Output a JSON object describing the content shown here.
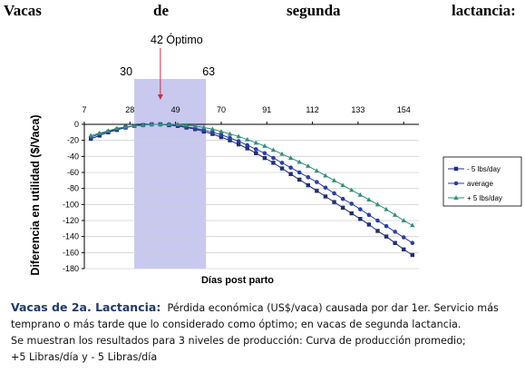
{
  "title_words": [
    "Vacas",
    "de",
    "segunda",
    "lactancia:"
  ],
  "chart_data": {
    "type": "line",
    "ylabel": "Diferencia en utilidad ($/Vaca)",
    "xlabel": "Días post parto",
    "x_ticks": [
      7,
      28,
      49,
      70,
      91,
      112,
      133,
      154
    ],
    "y_ticks": [
      0,
      -20,
      -40,
      -60,
      -80,
      -100,
      -120,
      -140,
      -160,
      -180
    ],
    "ylim": [
      -180,
      0
    ],
    "xlim": [
      7,
      161
    ],
    "optimal_window": {
      "start": 30,
      "end": 63,
      "start_label": "30",
      "end_label": "63"
    },
    "optimum": {
      "x": 42,
      "label": "42 Óptimo"
    },
    "x": [
      10,
      14,
      18,
      22,
      26,
      30,
      34,
      38,
      42,
      46,
      50,
      54,
      58,
      62,
      66,
      70,
      74,
      78,
      82,
      86,
      90,
      94,
      98,
      102,
      106,
      110,
      114,
      118,
      122,
      126,
      130,
      134,
      138,
      142,
      146,
      150,
      154,
      158
    ],
    "series": [
      {
        "name": "- 5 lbs/day",
        "marker": "square",
        "color": "#1f2f6e",
        "values": [
          -18,
          -14,
          -10,
          -7,
          -4,
          -2,
          -1,
          0,
          0,
          -1,
          -2,
          -4,
          -6,
          -9,
          -12,
          -16,
          -20,
          -25,
          -30,
          -36,
          -42,
          -48,
          -55,
          -62,
          -69,
          -76,
          -83,
          -90,
          -97,
          -104,
          -111,
          -118,
          -125,
          -133,
          -140,
          -148,
          -156,
          -163
        ]
      },
      {
        "name": "average",
        "marker": "circle",
        "color": "#2a3ea8",
        "values": [
          -16,
          -12,
          -9,
          -6,
          -3,
          -2,
          -1,
          0,
          0,
          0,
          -1,
          -3,
          -5,
          -7,
          -10,
          -13,
          -17,
          -21,
          -26,
          -31,
          -36,
          -42,
          -48,
          -54,
          -60,
          -66,
          -72,
          -79,
          -86,
          -93,
          -99,
          -106,
          -113,
          -120,
          -127,
          -134,
          -141,
          -148
        ]
      },
      {
        "name": "+ 5 lbs/day",
        "marker": "triangle",
        "color": "#2f8f7a",
        "values": [
          -14,
          -11,
          -8,
          -5,
          -3,
          -2,
          -1,
          0,
          0,
          0,
          0,
          -1,
          -2,
          -4,
          -6,
          -9,
          -12,
          -15,
          -19,
          -23,
          -27,
          -32,
          -37,
          -42,
          -47,
          -52,
          -58,
          -64,
          -70,
          -76,
          -82,
          -88,
          -94,
          -100,
          -106,
          -113,
          -120,
          -126
        ]
      }
    ]
  },
  "caption": {
    "lead": "Vacas de 2a. Lactancia:",
    "line1_rest": "Pérdida económica (US$/vaca) causada por dar 1er. Servicio más",
    "line2": "temprano o más tarde que lo considerado como óptimo; en vacas de segunda lactancia.",
    "line3": "Se muestran los resultados para 3 niveles de producción:  Curva de producción promedio;",
    "line4": "+5 Libras/día  y  - 5 Libras/día"
  }
}
